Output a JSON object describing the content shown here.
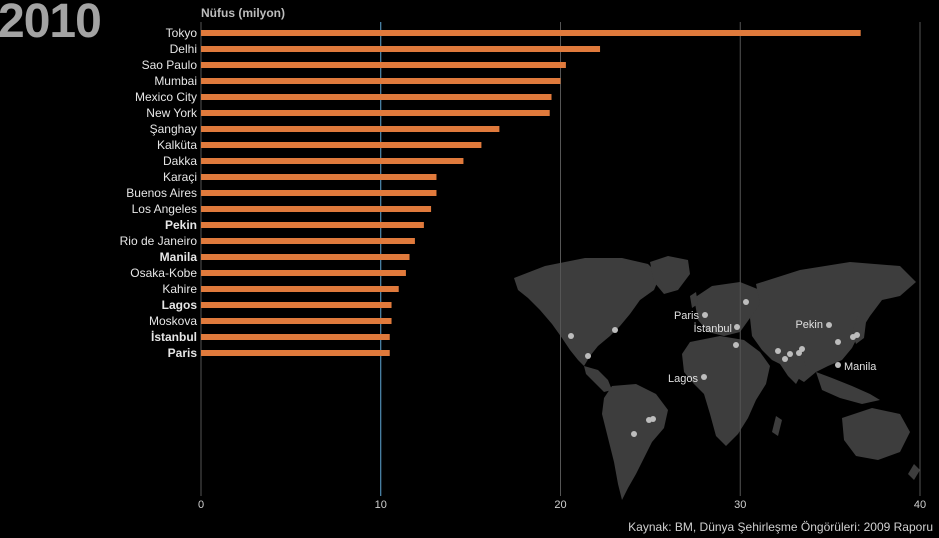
{
  "header": {
    "year": "2010"
  },
  "footer": {
    "source": "Kaynak: BM, Dünya Şehirleşme Öngörüleri: 2009 Raporu"
  },
  "chart_data": {
    "type": "bar",
    "orientation": "horizontal",
    "title": "",
    "ylabel": "Nüfus (milyon)",
    "xlabel": "",
    "xlim": [
      0,
      40
    ],
    "xticks": [
      0,
      10,
      20,
      30,
      40
    ],
    "highlight_tick": 10,
    "bar_color": "#e07a3c",
    "grid_color": "#555555",
    "highlight_color": "#5fa8d6",
    "categories": [
      "Tokyo",
      "Delhi",
      "Sao Paulo",
      "Mumbai",
      "Mexico City",
      "New York",
      "Şanghay",
      "Kalküta",
      "Dakka",
      "Karaçi",
      "Buenos Aires",
      "Los Angeles",
      "Pekin",
      "Rio de Janeiro",
      "Manila",
      "Osaka-Kobe",
      "Kahire",
      "Lagos",
      "Moskova",
      "İstanbul",
      "Paris"
    ],
    "values": [
      36.7,
      22.2,
      20.3,
      20.0,
      19.5,
      19.4,
      16.6,
      15.6,
      14.6,
      13.1,
      13.1,
      12.8,
      12.4,
      11.9,
      11.6,
      11.4,
      11.0,
      10.6,
      10.6,
      10.5,
      10.5
    ],
    "bold_categories": [
      "Pekin",
      "Manila",
      "Lagos",
      "İstanbul",
      "Paris"
    ]
  },
  "map": {
    "land_color": "#3d3d3d",
    "dot_color": "#bdbdbd",
    "labels": [
      "Paris",
      "İstanbul",
      "Pekin",
      "Manila",
      "Lagos"
    ]
  }
}
